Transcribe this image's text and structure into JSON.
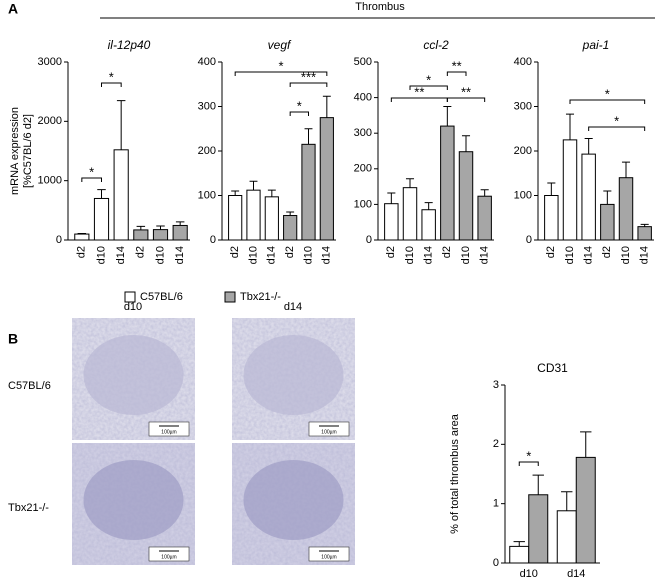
{
  "figure": {
    "labels": [
      "A",
      "B"
    ],
    "header": "Thrombus",
    "columns": [
      "d10",
      "d14"
    ],
    "rows": [
      "C57BL/6",
      "Tbx21-/-"
    ],
    "scale_bar": "100µm"
  },
  "chart_data": [
    {
      "type": "bar",
      "title": "il-12p40",
      "y_label": [
        "mRNA expression",
        "[%C57BL/6 d2]"
      ],
      "categories": [
        "d2",
        "d10",
        "d14"
      ],
      "series": [
        {
          "name": "C57BL/6",
          "color": "#ffffff",
          "values": [
            100,
            700,
            1520
          ],
          "errors": [
            10,
            150,
            830
          ]
        },
        {
          "name": "Tbx21-/-",
          "color": "#a6a6a6",
          "values": [
            170,
            175,
            245
          ],
          "errors": [
            60,
            60,
            60
          ]
        }
      ],
      "ylim": [
        0,
        3000
      ],
      "yticks": [
        0,
        1000,
        2000,
        3000
      ],
      "annotations": [
        "*",
        "*"
      ]
    },
    {
      "type": "bar",
      "title": "vegf",
      "categories": [
        "d2",
        "d10",
        "d14"
      ],
      "series": [
        {
          "name": "C57BL/6",
          "color": "#ffffff",
          "values": [
            100,
            112,
            97
          ],
          "errors": [
            10,
            20,
            15
          ]
        },
        {
          "name": "Tbx21-/-",
          "color": "#a6a6a6",
          "values": [
            55,
            215,
            275
          ],
          "errors": [
            8,
            35,
            48
          ]
        }
      ],
      "ylim": [
        0,
        400
      ],
      "yticks": [
        0,
        100,
        200,
        300,
        400
      ],
      "annotations": [
        "*",
        "***",
        "*"
      ]
    },
    {
      "type": "bar",
      "title": "ccl-2",
      "categories": [
        "d2",
        "d10",
        "d14"
      ],
      "series": [
        {
          "name": "C57BL/6",
          "color": "#ffffff",
          "values": [
            102,
            147,
            85
          ],
          "errors": [
            30,
            25,
            20
          ]
        },
        {
          "name": "Tbx21-/-",
          "color": "#a6a6a6",
          "values": [
            320,
            248,
            123
          ],
          "errors": [
            55,
            45,
            18
          ]
        }
      ],
      "ylim": [
        0,
        500
      ],
      "yticks": [
        0,
        100,
        200,
        300,
        400,
        500
      ],
      "annotations": [
        "**",
        "*",
        "**",
        "**"
      ]
    },
    {
      "type": "bar",
      "title": "pai-1",
      "categories": [
        "d2",
        "d10",
        "d14"
      ],
      "series": [
        {
          "name": "C57BL/6",
          "color": "#ffffff",
          "values": [
            100,
            225,
            193
          ],
          "errors": [
            28,
            58,
            35
          ]
        },
        {
          "name": "Tbx21-/-",
          "color": "#a6a6a6",
          "values": [
            80,
            140,
            30
          ],
          "errors": [
            30,
            35,
            5
          ]
        }
      ],
      "ylim": [
        0,
        400
      ],
      "yticks": [
        0,
        100,
        200,
        300,
        400
      ],
      "annotations": [
        "*",
        "*"
      ]
    },
    {
      "type": "bar",
      "title": "CD31",
      "y_label": [
        "% of total thrombus area"
      ],
      "categories": [
        "d10",
        "d14"
      ],
      "series": [
        {
          "name": "C57BL/6",
          "color": "#ffffff",
          "values": [
            0.28,
            0.88
          ],
          "errors": [
            0.08,
            0.32
          ]
        },
        {
          "name": "Tbx21-/-",
          "color": "#a6a6a6",
          "values": [
            1.15,
            1.78
          ],
          "errors": [
            0.33,
            0.43
          ]
        }
      ],
      "ylim": [
        0,
        3
      ],
      "yticks": [
        0,
        1,
        2,
        3
      ],
      "annotations": [
        "*"
      ]
    }
  ]
}
